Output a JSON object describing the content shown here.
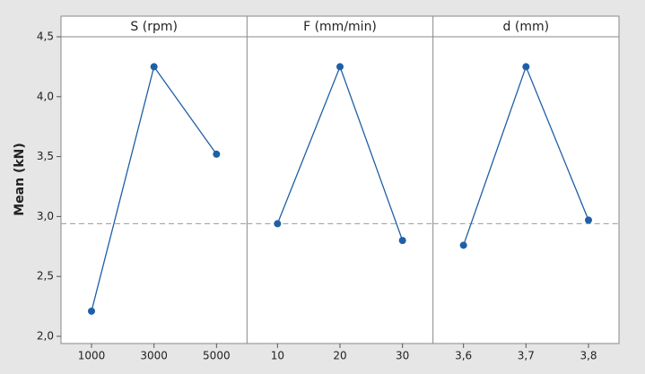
{
  "chart_data": [
    {
      "type": "line",
      "title": "S (rpm)",
      "ylabel": "Mean (kN)",
      "categories": [
        "1000",
        "3000",
        "5000"
      ],
      "values": [
        2.21,
        4.25,
        3.52
      ],
      "color": "#1f5fa6",
      "ylim": [
        2.0,
        4.5
      ],
      "yticks": [
        {
          "value": 2.0,
          "label": "2,0"
        },
        {
          "value": 2.5,
          "label": "2,5"
        },
        {
          "value": 3.0,
          "label": "3,0"
        },
        {
          "value": 3.5,
          "label": "3,5"
        },
        {
          "value": 4.0,
          "label": "4,0"
        },
        {
          "value": 4.5,
          "label": "4,5"
        }
      ],
      "reference_line": 2.94
    },
    {
      "type": "line",
      "title": "F (mm/min)",
      "categories": [
        "10",
        "20",
        "30"
      ],
      "values": [
        2.94,
        4.25,
        2.8
      ],
      "color": "#1f5fa6",
      "ylim": [
        2.0,
        4.5
      ],
      "reference_line": 2.94
    },
    {
      "type": "line",
      "title": "d (mm)",
      "categories": [
        "3,6",
        "3,7",
        "3,8"
      ],
      "values": [
        2.76,
        4.25,
        2.97
      ],
      "color": "#1f5fa6",
      "ylim": [
        2.0,
        4.5
      ],
      "reference_line": 2.94
    }
  ]
}
